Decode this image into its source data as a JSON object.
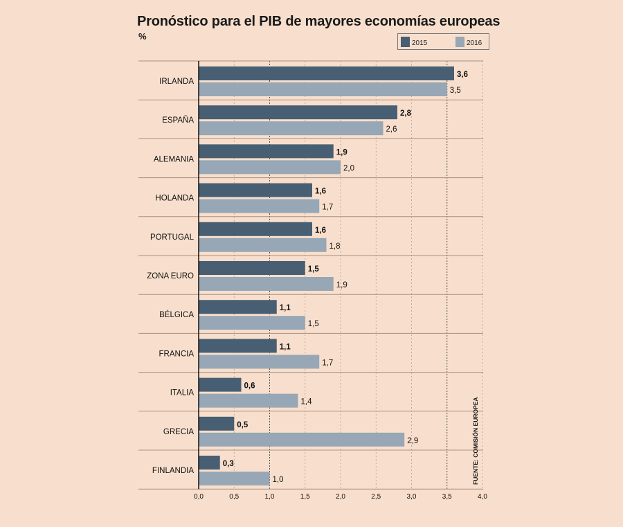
{
  "chart_data": {
    "type": "bar",
    "orientation": "horizontal",
    "title": "Pronóstico para el PIB de mayores economías europeas",
    "unit": "%",
    "categories": [
      "IRLANDA",
      "ESPAÑA",
      "ALEMANIA",
      "HOLANDA",
      "PORTUGAL",
      "ZONA EURO",
      "BÉLGICA",
      "FRANCIA",
      "ITALIA",
      "GRECIA",
      "FINLANDIA"
    ],
    "series": [
      {
        "name": "2015",
        "color": "#485f73",
        "values": [
          3.6,
          2.8,
          1.9,
          1.6,
          1.6,
          1.5,
          1.1,
          1.1,
          0.6,
          0.5,
          0.3
        ],
        "labels": [
          "3,6",
          "2,8",
          "1,9",
          "1,6",
          "1,6",
          "1,5",
          "1,1",
          "1,1",
          "0,6",
          "0,5",
          "0,3"
        ]
      },
      {
        "name": "2016",
        "color": "#97a7b5",
        "values": [
          3.5,
          2.6,
          2.0,
          1.7,
          1.8,
          1.9,
          1.5,
          1.7,
          1.4,
          2.9,
          1.0
        ],
        "labels": [
          "3,5",
          "2,6",
          "2,0",
          "1,7",
          "1,8",
          "1,9",
          "1,5",
          "1,7",
          "1,4",
          "2,9",
          "1,0"
        ]
      }
    ],
    "xlim": [
      0,
      4.0
    ],
    "xticks": [
      0,
      0.5,
      1.0,
      1.5,
      2.0,
      2.5,
      3.0,
      3.5,
      4.0
    ],
    "xtick_labels": [
      "0,0",
      "0,5",
      "1,0",
      "1,5",
      "2,0",
      "2,5",
      "3,0",
      "3,5",
      "4,0"
    ],
    "legend_position": "top-right",
    "source": "FUENTE: COMISIÓN EUROPEA"
  }
}
